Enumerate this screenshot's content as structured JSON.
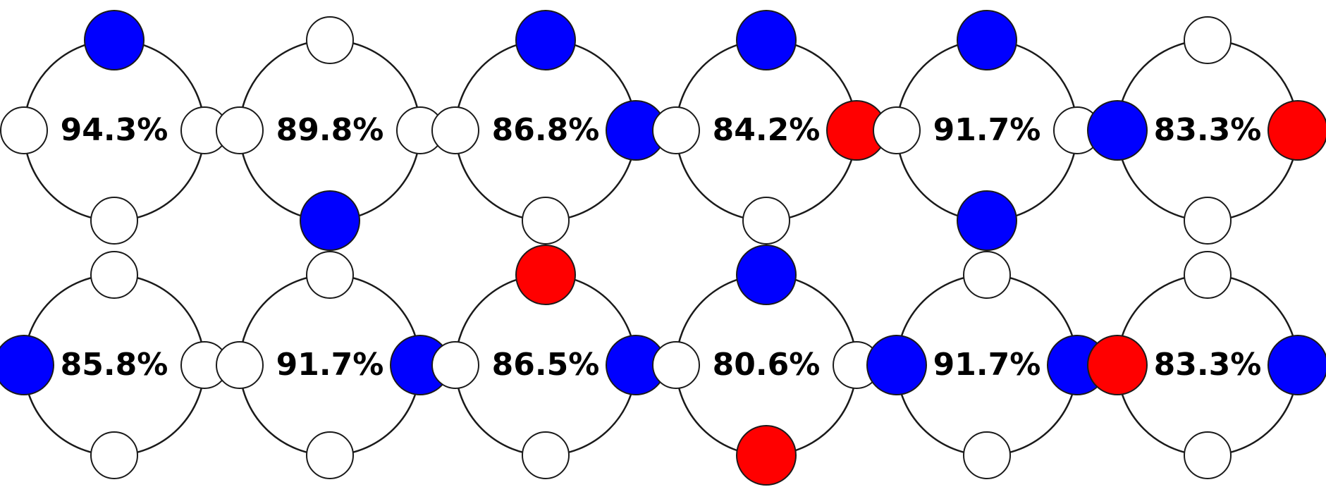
{
  "colors": {
    "blue": "#0000ff",
    "red": "#ff0000",
    "empty": "#ffffff",
    "outline": "#1a1a1a"
  },
  "diagrams": [
    {
      "label": "94.3%",
      "top": "blue",
      "right": "empty",
      "bottom": "empty",
      "left": "empty"
    },
    {
      "label": "89.8%",
      "top": "empty",
      "right": "empty",
      "bottom": "blue",
      "left": "empty"
    },
    {
      "label": "86.8%",
      "top": "blue",
      "right": "blue",
      "bottom": "empty",
      "left": "empty"
    },
    {
      "label": "84.2%",
      "top": "blue",
      "right": "red",
      "bottom": "empty",
      "left": "empty"
    },
    {
      "label": "91.7%",
      "top": "blue",
      "right": "empty",
      "bottom": "blue",
      "left": "empty"
    },
    {
      "label": "83.3%",
      "top": "empty",
      "right": "red",
      "bottom": "empty",
      "left": "blue"
    },
    {
      "label": "85.8%",
      "top": "empty",
      "right": "empty",
      "bottom": "empty",
      "left": "blue"
    },
    {
      "label": "91.7%",
      "top": "empty",
      "right": "blue",
      "bottom": "empty",
      "left": "empty"
    },
    {
      "label": "86.5%",
      "top": "red",
      "right": "blue",
      "bottom": "empty",
      "left": "empty"
    },
    {
      "label": "80.6%",
      "top": "blue",
      "right": "empty",
      "bottom": "red",
      "left": "empty"
    },
    {
      "label": "91.7%",
      "top": "empty",
      "right": "blue",
      "bottom": "empty",
      "left": "blue"
    },
    {
      "label": "83.3%",
      "top": "empty",
      "right": "blue",
      "bottom": "empty",
      "left": "red"
    }
  ]
}
